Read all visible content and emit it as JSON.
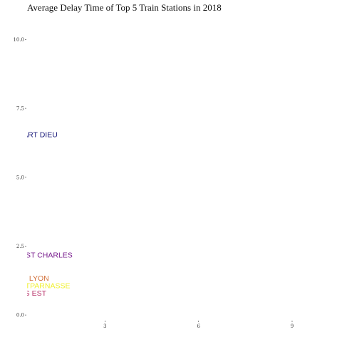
{
  "chart_data": {
    "type": "line",
    "title": "Average Delay Time of Top 5 Train Stations in 2018",
    "xlabel": "",
    "ylabel": "",
    "xlim": [
      0.5,
      10.6
    ],
    "ylim": [
      -0.1,
      10.4
    ],
    "x_ticks": [
      {
        "value": 3,
        "label": "3"
      },
      {
        "value": 6,
        "label": "6"
      },
      {
        "value": 9,
        "label": "9"
      }
    ],
    "y_ticks": [
      {
        "value": 0,
        "label": "0.0"
      },
      {
        "value": 2.5,
        "label": "2.5"
      },
      {
        "value": 5,
        "label": "5.0"
      },
      {
        "value": 7.5,
        "label": "7.5"
      },
      {
        "value": 10,
        "label": "10.0"
      }
    ],
    "grid": false,
    "legend": "none",
    "series": [
      {
        "name": "LYON PART DIEU",
        "color": "#1a1a7a",
        "last_x": 0.5,
        "last_y": 6.55
      },
      {
        "name": "MARSEILLE ST CHARLES",
        "color": "#7a1f8f",
        "last_x": 0.5,
        "last_y": 2.17
      },
      {
        "name": "PARIS LYON",
        "color": "#d2703a",
        "last_x": 0.5,
        "last_y": 1.33
      },
      {
        "name": "PARIS MONTPARNASSE",
        "color": "#f0f030",
        "last_x": 0.5,
        "last_y": 1.07
      },
      {
        "name": "PARIS EST",
        "color": "#b8336a",
        "last_x": 0.5,
        "last_y": 0.79
      }
    ]
  }
}
